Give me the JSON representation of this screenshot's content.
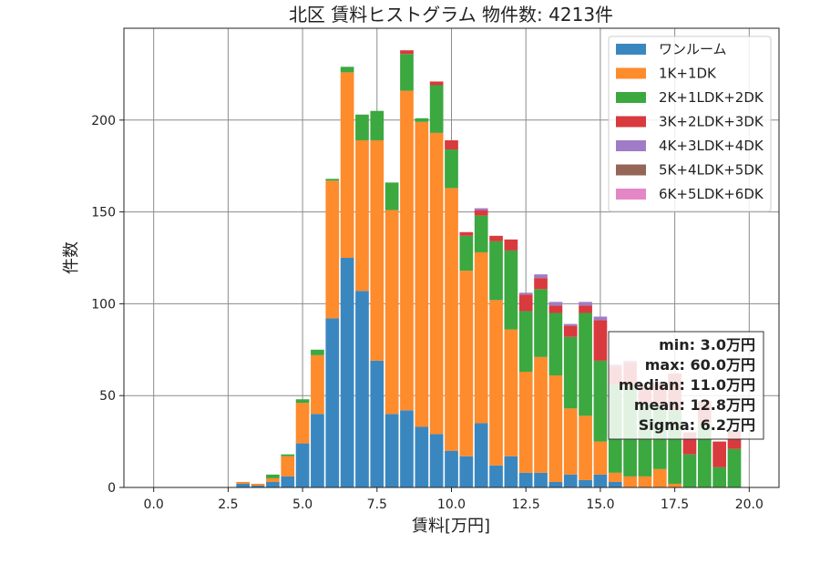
{
  "chart_data": {
    "type": "bar",
    "stacked": true,
    "title": "北区 賃料ヒストグラム  物件数: 4213件",
    "xlabel": "賃料[万円]",
    "ylabel": "件数",
    "xlim": [
      -1.0,
      21.0
    ],
    "ylim": [
      0,
      250
    ],
    "xticks": [
      0.0,
      2.5,
      5.0,
      7.5,
      10.0,
      12.5,
      15.0,
      17.5,
      20.0
    ],
    "xtick_labels": [
      "0.0",
      "2.5",
      "5.0",
      "7.5",
      "10.0",
      "12.5",
      "15.0",
      "17.5",
      "20.0"
    ],
    "yticks": [
      0,
      50,
      100,
      150,
      200
    ],
    "ytick_labels": [
      "0",
      "50",
      "100",
      "150",
      "200"
    ],
    "grid": true,
    "legend_position": "top-right",
    "bin_width": 0.5,
    "x": [
      3.0,
      3.5,
      4.0,
      4.5,
      5.0,
      5.5,
      6.0,
      6.5,
      7.0,
      7.5,
      8.0,
      8.5,
      9.0,
      9.5,
      10.0,
      10.5,
      11.0,
      11.5,
      12.0,
      12.5,
      13.0,
      13.5,
      14.0,
      14.5,
      15.0,
      15.5,
      16.0,
      16.5,
      17.0,
      17.5,
      18.0,
      18.5,
      19.0,
      19.5
    ],
    "series": [
      {
        "name": "ワンルーム",
        "color": "#3a87c0",
        "values": [
          2,
          1,
          3,
          6,
          24,
          40,
          92,
          125,
          107,
          69,
          40,
          42,
          33,
          29,
          20,
          17,
          35,
          12,
          17,
          8,
          8,
          3,
          7,
          4,
          7,
          3,
          0,
          0,
          0,
          0,
          0,
          0,
          0,
          0
        ]
      },
      {
        "name": "1K+1DK",
        "color": "#fe8b2c",
        "values": [
          1,
          1,
          2,
          11,
          22,
          32,
          75,
          101,
          82,
          120,
          111,
          174,
          166,
          164,
          143,
          101,
          93,
          90,
          69,
          55,
          63,
          58,
          36,
          35,
          18,
          5,
          6,
          6,
          10,
          2,
          0,
          0,
          0,
          0
        ]
      },
      {
        "name": "2K+1LDK+2DK",
        "color": "#3ca840",
        "values": [
          0,
          0,
          2,
          1,
          2,
          3,
          1,
          3,
          14,
          16,
          15,
          20,
          2,
          26,
          21,
          19,
          20,
          32,
          43,
          33,
          37,
          34,
          39,
          56,
          44,
          48,
          50,
          40,
          35,
          40,
          18,
          35,
          11,
          21
        ]
      },
      {
        "name": "3K+2LDK+3DK",
        "color": "#d83a3d",
        "values": [
          0,
          0,
          0,
          0,
          0,
          0,
          0,
          0,
          0,
          0,
          0,
          2,
          0,
          2,
          5,
          2,
          3,
          3,
          6,
          9,
          6,
          4,
          6,
          4,
          22,
          10,
          12,
          9,
          12,
          20,
          12,
          12,
          14,
          10
        ]
      },
      {
        "name": "4K+3LDK+4DK",
        "color": "#a07cc6",
        "values": [
          0,
          0,
          0,
          0,
          0,
          0,
          0,
          0,
          0,
          0,
          0,
          0,
          0,
          0,
          0,
          0,
          1,
          0,
          0,
          1,
          2,
          2,
          1,
          2,
          2,
          1,
          1,
          0,
          0,
          0,
          0,
          0,
          0,
          0
        ]
      },
      {
        "name": "5K+4LDK+5DK",
        "color": "#956558",
        "values": [
          0,
          0,
          0,
          0,
          0,
          0,
          0,
          0,
          0,
          0,
          0,
          0,
          0,
          0,
          0,
          0,
          0,
          0,
          0,
          0,
          0,
          0,
          0,
          0,
          0,
          0,
          0,
          0,
          0,
          0,
          0,
          0,
          0,
          0
        ]
      },
      {
        "name": "6K+5LDK+6DK",
        "color": "#e586c6",
        "values": [
          0,
          0,
          0,
          0,
          0,
          0,
          0,
          0,
          0,
          0,
          0,
          0,
          0,
          0,
          0,
          0,
          0,
          0,
          0,
          0,
          0,
          0,
          0,
          0,
          0,
          0,
          0,
          0,
          0,
          0,
          0,
          0,
          0,
          0
        ]
      }
    ],
    "annotations": [
      "min: 3.0万円",
      "max: 60.0万円",
      "median: 11.0万円",
      "mean: 12.8万円",
      "Sigma: 6.2万円"
    ]
  }
}
